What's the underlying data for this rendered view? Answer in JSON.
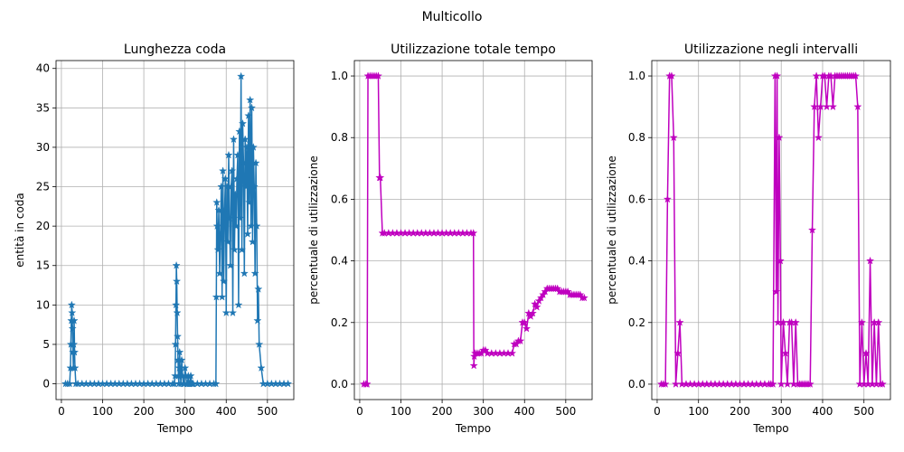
{
  "figure": {
    "title": "Multicollo"
  },
  "chart_data": [
    {
      "type": "line",
      "title": "Lunghezza coda",
      "xlabel": "Tempo",
      "ylabel": "entità in coda",
      "xlim": [
        -13,
        564
      ],
      "ylim": [
        -2,
        41
      ],
      "xticks": [
        0,
        100,
        200,
        300,
        400,
        500
      ],
      "yticks": [
        0,
        5,
        10,
        15,
        20,
        25,
        30,
        35,
        40
      ],
      "grid": true,
      "color": "#1f77b4",
      "marker": "star",
      "x": [
        10,
        15,
        20,
        22,
        23,
        24,
        25,
        26,
        27,
        28,
        29,
        30,
        31,
        32,
        33,
        35,
        40,
        50,
        60,
        70,
        80,
        90,
        100,
        110,
        120,
        130,
        140,
        150,
        160,
        170,
        180,
        190,
        200,
        210,
        220,
        230,
        240,
        250,
        260,
        270,
        274,
        276,
        277,
        278,
        279,
        280,
        281,
        282,
        283,
        284,
        285,
        286,
        287,
        288,
        290,
        292,
        294,
        296,
        298,
        300,
        302,
        304,
        306,
        308,
        310,
        312,
        314,
        316,
        318,
        320,
        330,
        340,
        350,
        360,
        370,
        375,
        376,
        377,
        378,
        380,
        382,
        384,
        386,
        388,
        390,
        392,
        394,
        396,
        398,
        400,
        402,
        404,
        406,
        408,
        410,
        412,
        414,
        416,
        418,
        420,
        422,
        424,
        426,
        428,
        430,
        432,
        434,
        436,
        438,
        440,
        442,
        444,
        446,
        448,
        450,
        452,
        454,
        456,
        458,
        460,
        462,
        464,
        466,
        468,
        470,
        472,
        474,
        476,
        478,
        480,
        485,
        490,
        500,
        510,
        520,
        530,
        540,
        550
      ],
      "y": [
        0,
        0,
        0,
        2,
        5,
        8,
        10,
        9,
        7,
        4,
        2,
        5,
        8,
        4,
        2,
        0,
        0,
        0,
        0,
        0,
        0,
        0,
        0,
        0,
        0,
        0,
        0,
        0,
        0,
        0,
        0,
        0,
        0,
        0,
        0,
        0,
        0,
        0,
        0,
        0,
        0,
        1,
        5,
        10,
        15,
        13,
        9,
        6,
        3,
        1,
        0,
        2,
        4,
        2,
        0,
        3,
        1,
        0,
        0,
        2,
        1,
        0,
        0,
        1,
        0,
        0,
        1,
        0,
        0,
        0,
        0,
        0,
        0,
        0,
        0,
        0,
        11,
        23,
        20,
        17,
        22,
        14,
        19,
        25,
        11,
        27,
        13,
        22,
        26,
        9,
        25,
        18,
        29,
        21,
        15,
        25,
        27,
        9,
        31,
        17,
        24,
        20,
        26,
        29,
        10,
        32,
        21,
        39,
        17,
        33,
        28,
        14,
        31,
        25,
        30,
        19,
        34,
        23,
        36,
        20,
        35,
        18,
        30,
        25,
        14,
        28,
        20,
        8,
        12,
        5,
        2,
        0,
        0,
        0,
        0,
        0,
        0,
        0
      ]
    },
    {
      "type": "line",
      "title": "Utilizzazione totale tempo",
      "xlabel": "Tempo",
      "ylabel": "percentuale di utilizzazione",
      "xlim": [
        -13,
        564
      ],
      "ylim": [
        -0.05,
        1.05
      ],
      "xticks": [
        0,
        100,
        200,
        300,
        400,
        500
      ],
      "yticks": [
        0.0,
        0.2,
        0.4,
        0.6,
        0.8,
        1.0
      ],
      "grid": true,
      "color": "#bf00bf",
      "marker": "star",
      "x": [
        10,
        15,
        18,
        20,
        25,
        30,
        35,
        40,
        45,
        48,
        50,
        55,
        60,
        70,
        80,
        90,
        100,
        110,
        120,
        130,
        140,
        150,
        160,
        170,
        180,
        190,
        200,
        210,
        220,
        230,
        240,
        250,
        260,
        270,
        276,
        277,
        278,
        280,
        285,
        290,
        295,
        300,
        305,
        310,
        320,
        330,
        340,
        350,
        360,
        370,
        375,
        380,
        385,
        390,
        395,
        400,
        405,
        410,
        415,
        420,
        425,
        430,
        435,
        440,
        445,
        450,
        455,
        460,
        465,
        470,
        475,
        480,
        485,
        490,
        495,
        500,
        505,
        510,
        515,
        520,
        525,
        530,
        535,
        540,
        545
      ],
      "y": [
        0,
        0,
        0,
        1,
        1,
        1,
        1,
        1,
        1,
        0.67,
        0.67,
        0.49,
        0.49,
        0.49,
        0.49,
        0.49,
        0.49,
        0.49,
        0.49,
        0.49,
        0.49,
        0.49,
        0.49,
        0.49,
        0.49,
        0.49,
        0.49,
        0.49,
        0.49,
        0.49,
        0.49,
        0.49,
        0.49,
        0.49,
        0.49,
        0.06,
        0.09,
        0.1,
        0.1,
        0.1,
        0.1,
        0.11,
        0.11,
        0.1,
        0.1,
        0.1,
        0.1,
        0.1,
        0.1,
        0.1,
        0.13,
        0.13,
        0.14,
        0.14,
        0.2,
        0.2,
        0.18,
        0.23,
        0.22,
        0.23,
        0.26,
        0.25,
        0.27,
        0.28,
        0.29,
        0.3,
        0.31,
        0.31,
        0.31,
        0.31,
        0.31,
        0.31,
        0.3,
        0.3,
        0.3,
        0.3,
        0.3,
        0.29,
        0.29,
        0.29,
        0.29,
        0.29,
        0.29,
        0.28,
        0.28
      ]
    },
    {
      "type": "line",
      "title": "Utilizzazione negli intervalli",
      "xlabel": "Tempo",
      "ylabel": "percentuale di utilizzazione",
      "xlim": [
        -13,
        564
      ],
      "ylim": [
        -0.05,
        1.05
      ],
      "xticks": [
        0,
        100,
        200,
        300,
        400,
        500
      ],
      "yticks": [
        0.0,
        0.2,
        0.4,
        0.6,
        0.8,
        1.0
      ],
      "grid": true,
      "color": "#bf00bf",
      "marker": "star",
      "x": [
        10,
        15,
        20,
        25,
        30,
        35,
        40,
        45,
        50,
        55,
        60,
        70,
        80,
        90,
        100,
        110,
        120,
        130,
        140,
        150,
        160,
        170,
        180,
        190,
        200,
        210,
        220,
        230,
        240,
        250,
        260,
        270,
        275,
        280,
        285,
        288,
        290,
        292,
        295,
        298,
        300,
        305,
        310,
        315,
        320,
        325,
        330,
        335,
        340,
        345,
        350,
        355,
        360,
        365,
        370,
        375,
        380,
        385,
        390,
        395,
        400,
        405,
        410,
        415,
        420,
        425,
        430,
        435,
        440,
        445,
        450,
        455,
        460,
        465,
        470,
        475,
        480,
        485,
        490,
        495,
        500,
        505,
        510,
        515,
        520,
        525,
        530,
        535,
        540,
        545
      ],
      "y": [
        0,
        0,
        0,
        0.6,
        1,
        1,
        0.8,
        0,
        0.1,
        0.2,
        0,
        0,
        0,
        0,
        0,
        0,
        0,
        0,
        0,
        0,
        0,
        0,
        0,
        0,
        0,
        0,
        0,
        0,
        0,
        0,
        0,
        0,
        0,
        0,
        1,
        0.3,
        1,
        0.2,
        0.8,
        0.4,
        0,
        0.2,
        0.1,
        0,
        0.2,
        0.2,
        0,
        0.2,
        0,
        0,
        0,
        0,
        0,
        0,
        0,
        0.5,
        0.9,
        1,
        0.8,
        0.9,
        1,
        1,
        0.9,
        1,
        1,
        0.9,
        1,
        1,
        1,
        1,
        1,
        1,
        1,
        1,
        1,
        1,
        1,
        0.9,
        0,
        0.2,
        0,
        0.1,
        0,
        0.4,
        0,
        0.2,
        0,
        0.2,
        0,
        0
      ]
    }
  ]
}
